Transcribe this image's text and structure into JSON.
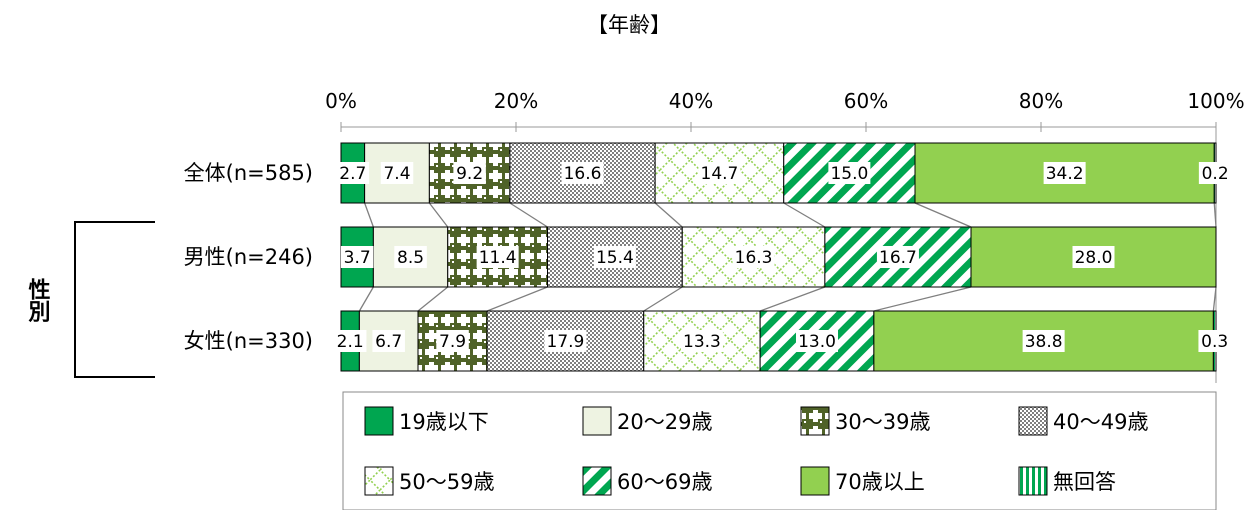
{
  "chart_data": {
    "type": "bar",
    "orientation": "horizontal",
    "stacked": "percent",
    "title": "【年齢】",
    "categories": [
      "全体(n=585)",
      "男性(n=246)",
      "女性(n=330)"
    ],
    "group_label": "性別",
    "x_ticks": [
      "0%",
      "20%",
      "40%",
      "60%",
      "80%",
      "100%"
    ],
    "xlim": [
      0,
      100
    ],
    "legend_position": "bottom",
    "series": [
      {
        "name": "19歳以下",
        "color": "#00a650",
        "pattern": "solid",
        "values": [
          2.7,
          3.7,
          2.1
        ],
        "labels": [
          "2.7",
          "3.7",
          "2.1"
        ]
      },
      {
        "name": "20～29歳",
        "color": "#eef3e2",
        "pattern": "solid",
        "values": [
          7.4,
          8.5,
          6.7
        ],
        "labels": [
          "7.4",
          "8.5",
          "6.7"
        ]
      },
      {
        "name": "30～39歳",
        "color": "#4f6228",
        "pattern": "dark-crosses",
        "values": [
          9.2,
          11.4,
          7.9
        ],
        "labels": [
          "9.2",
          "11.4",
          "7.9"
        ]
      },
      {
        "name": "40～49歳",
        "color": "#8c8c8c",
        "pattern": "fine-check",
        "values": [
          16.6,
          15.4,
          17.9
        ],
        "labels": [
          "16.6",
          "15.4",
          "17.9"
        ]
      },
      {
        "name": "50～59歳",
        "color": "#92d050",
        "pattern": "light-lattice",
        "values": [
          14.7,
          16.3,
          13.3
        ],
        "labels": [
          "14.7",
          "16.3",
          "13.3"
        ]
      },
      {
        "name": "60～69歳",
        "color": "#00a650",
        "pattern": "diagonal-stripes",
        "values": [
          15.0,
          16.7,
          13.0
        ],
        "labels": [
          "15.0",
          "16.7",
          "13.0"
        ]
      },
      {
        "name": "70歳以上",
        "color": "#92d050",
        "pattern": "solid",
        "values": [
          34.2,
          28.0,
          38.8
        ],
        "labels": [
          "34.2",
          "28.0",
          "38.8"
        ]
      },
      {
        "name": "無回答",
        "color": "#00a650",
        "pattern": "vertical-stripes",
        "values": [
          0.2,
          0.0,
          0.3
        ],
        "labels": [
          "0.2",
          "",
          "0.3"
        ]
      }
    ]
  }
}
